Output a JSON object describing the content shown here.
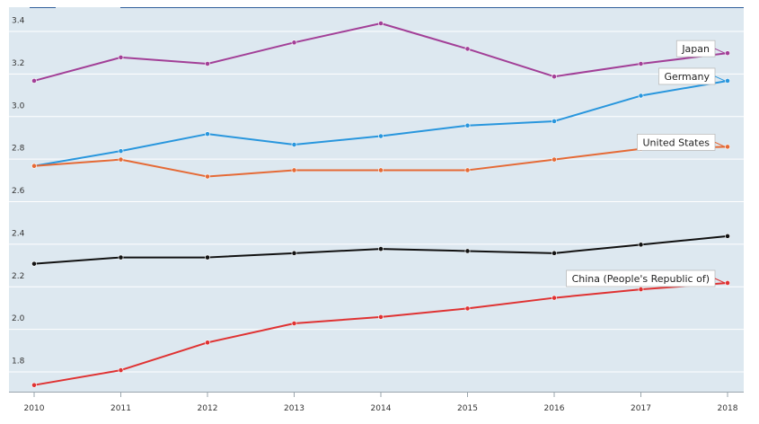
{
  "chart_data": {
    "type": "line",
    "title": "",
    "xlabel": "",
    "ylabel": "",
    "x": [
      2010,
      2011,
      2012,
      2013,
      2014,
      2015,
      2016,
      2017,
      2018
    ],
    "x_tick_labels": [
      "2010",
      "2011",
      "2012",
      "2013",
      "2014",
      "2015",
      "2016",
      "2017",
      "2018"
    ],
    "ylim": [
      1.7,
      3.45
    ],
    "y_ticks": [
      1.8,
      2.0,
      2.2,
      2.4,
      2.6,
      2.8,
      3.0,
      3.2,
      3.4
    ],
    "y_tick_labels": [
      "1.8",
      "2.0",
      "2.2",
      "2.4",
      "2.6",
      "2.8",
      "3.0",
      "3.2",
      "3.4"
    ],
    "grid": true,
    "background": "#dde8f0",
    "series": [
      {
        "name": "Japan",
        "color": "#a23f97",
        "labeled": true,
        "values": [
          3.13,
          3.24,
          3.21,
          3.31,
          3.4,
          3.28,
          3.15,
          3.21,
          3.26
        ]
      },
      {
        "name": "Germany",
        "color": "#2896dd",
        "labeled": true,
        "values": [
          2.73,
          2.8,
          2.88,
          2.83,
          2.87,
          2.92,
          2.94,
          3.06,
          3.13
        ]
      },
      {
        "name": "United States",
        "color": "#e56a36",
        "labeled": true,
        "values": [
          2.73,
          2.76,
          2.68,
          2.71,
          2.71,
          2.71,
          2.76,
          2.81,
          2.82
        ]
      },
      {
        "name": "",
        "color": "#111111",
        "labeled": false,
        "values": [
          2.27,
          2.3,
          2.3,
          2.32,
          2.34,
          2.33,
          2.32,
          2.36,
          2.4
        ]
      },
      {
        "name": "China (People's Republic of)",
        "color": "#df3232",
        "labeled": true,
        "values": [
          1.7,
          1.77,
          1.9,
          1.99,
          2.02,
          2.06,
          2.11,
          2.15,
          2.18
        ]
      }
    ]
  }
}
